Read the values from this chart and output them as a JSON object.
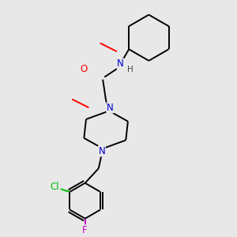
{
  "background_color": "#e8e8e8",
  "bond_color": "#000000",
  "atom_colors": {
    "N": "#0000cc",
    "O": "#ff0000",
    "Cl": "#00bb00",
    "F": "#cc00cc",
    "H": "#000000"
  },
  "figsize": [
    3.0,
    3.0
  ],
  "dpi": 100
}
